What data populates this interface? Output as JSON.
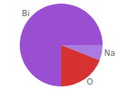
{
  "chart_data": {
    "type": "pie",
    "categories": [
      "Na",
      "O",
      "Bi"
    ],
    "values": [
      6,
      19,
      75
    ],
    "colors": [
      "#a97be3",
      "#d63232",
      "#9a4fd3"
    ],
    "legend": false
  }
}
